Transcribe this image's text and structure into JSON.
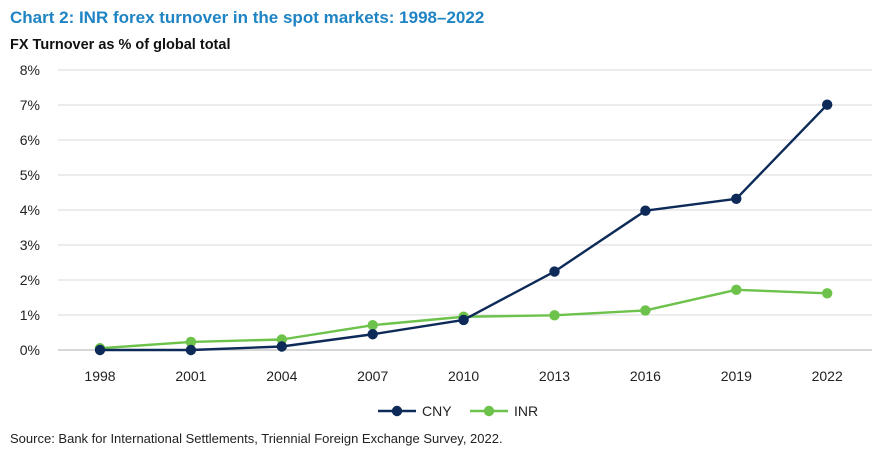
{
  "title": "Chart 2: INR forex turnover in the spot markets: 1998–2022",
  "subtitle": "FX Turnover as % of global total",
  "source": "Source: Bank for International Settlements, Triennial Foreign Exchange Survey, 2022.",
  "chart_data": {
    "type": "line",
    "categories": [
      "1998",
      "2001",
      "2004",
      "2007",
      "2010",
      "2013",
      "2016",
      "2019",
      "2022"
    ],
    "series": [
      {
        "name": "CNY",
        "color": "#0d2a58",
        "values": [
          0.0,
          0.0,
          0.1,
          0.45,
          0.86,
          2.24,
          3.98,
          4.32,
          7.01
        ]
      },
      {
        "name": "INR",
        "color": "#6cc24a",
        "values": [
          0.05,
          0.23,
          0.3,
          0.71,
          0.95,
          0.99,
          1.13,
          1.72,
          1.62
        ]
      }
    ],
    "yticks": [
      "0%",
      "1%",
      "2%",
      "3%",
      "4%",
      "5%",
      "6%",
      "7%",
      "8%"
    ],
    "ylim": [
      0,
      8
    ],
    "y_unit": "%",
    "grid": true,
    "legend_position": "bottom-center"
  }
}
